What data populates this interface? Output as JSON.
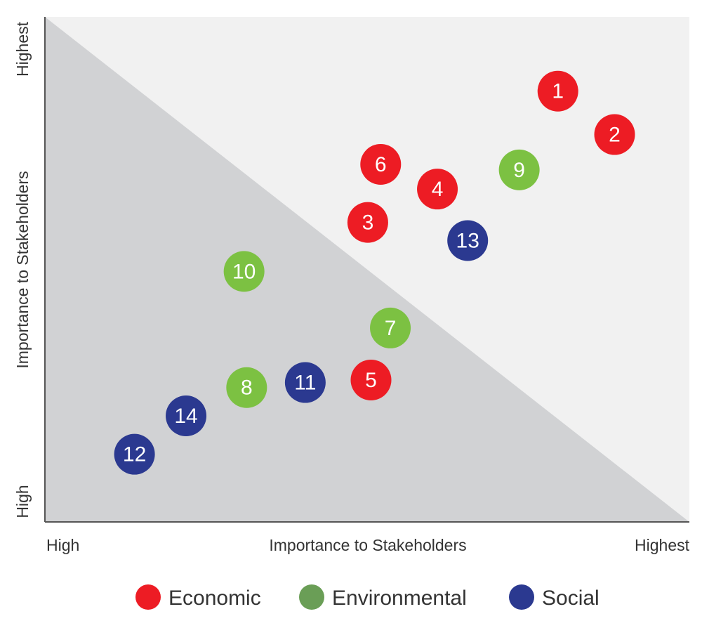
{
  "chart_data": {
    "type": "scatter",
    "x_axis": {
      "label": "Importance to Stakeholders",
      "low_label": "High",
      "high_label": "Highest"
    },
    "y_axis": {
      "label": "Importance to Stakeholders",
      "low_label": "High",
      "high_label": "Highest"
    },
    "xlim": [
      0,
      100
    ],
    "ylim": [
      0,
      100
    ],
    "grid": false,
    "legend_position": "bottom",
    "regions": [
      {
        "name": "lower-left-triangle",
        "color": "#d1d2d4"
      },
      {
        "name": "upper-right-triangle",
        "color": "#f1f1f1"
      }
    ],
    "categories": [
      {
        "key": "economic",
        "name": "Economic",
        "color": "#ed1c24"
      },
      {
        "key": "environmental",
        "name": "Environmental",
        "color": "#6a9e56"
      },
      {
        "key": "social",
        "name": "Social",
        "color": "#2b3990"
      }
    ],
    "points": [
      {
        "label": "1",
        "category": "economic",
        "color": "#ed1c24",
        "x": 79.6,
        "y": 85.3
      },
      {
        "label": "2",
        "category": "economic",
        "color": "#ed1c24",
        "x": 88.4,
        "y": 76.7
      },
      {
        "label": "3",
        "category": "economic",
        "color": "#ed1c24",
        "x": 50.1,
        "y": 59.3
      },
      {
        "label": "4",
        "category": "economic",
        "color": "#ed1c24",
        "x": 60.9,
        "y": 65.9
      },
      {
        "label": "5",
        "category": "economic",
        "color": "#ed1c24",
        "x": 50.6,
        "y": 28.1
      },
      {
        "label": "6",
        "category": "economic",
        "color": "#ed1c24",
        "x": 52.1,
        "y": 70.8
      },
      {
        "label": "7",
        "category": "environmental",
        "color": "#7cc142",
        "x": 53.6,
        "y": 38.4
      },
      {
        "label": "8",
        "category": "environmental",
        "color": "#7cc142",
        "x": 31.3,
        "y": 26.6
      },
      {
        "label": "9",
        "category": "environmental",
        "color": "#7cc142",
        "x": 73.6,
        "y": 69.7
      },
      {
        "label": "10",
        "category": "environmental",
        "color": "#7cc142",
        "x": 30.9,
        "y": 49.6
      },
      {
        "label": "11",
        "category": "social",
        "color": "#2b3990",
        "x": 40.4,
        "y": 27.6
      },
      {
        "label": "12",
        "category": "social",
        "color": "#2b3990",
        "x": 13.9,
        "y": 13.4
      },
      {
        "label": "13",
        "category": "social",
        "color": "#2b3990",
        "x": 65.6,
        "y": 55.7
      },
      {
        "label": "14",
        "category": "social",
        "color": "#2b3990",
        "x": 21.9,
        "y": 21.0
      }
    ]
  }
}
